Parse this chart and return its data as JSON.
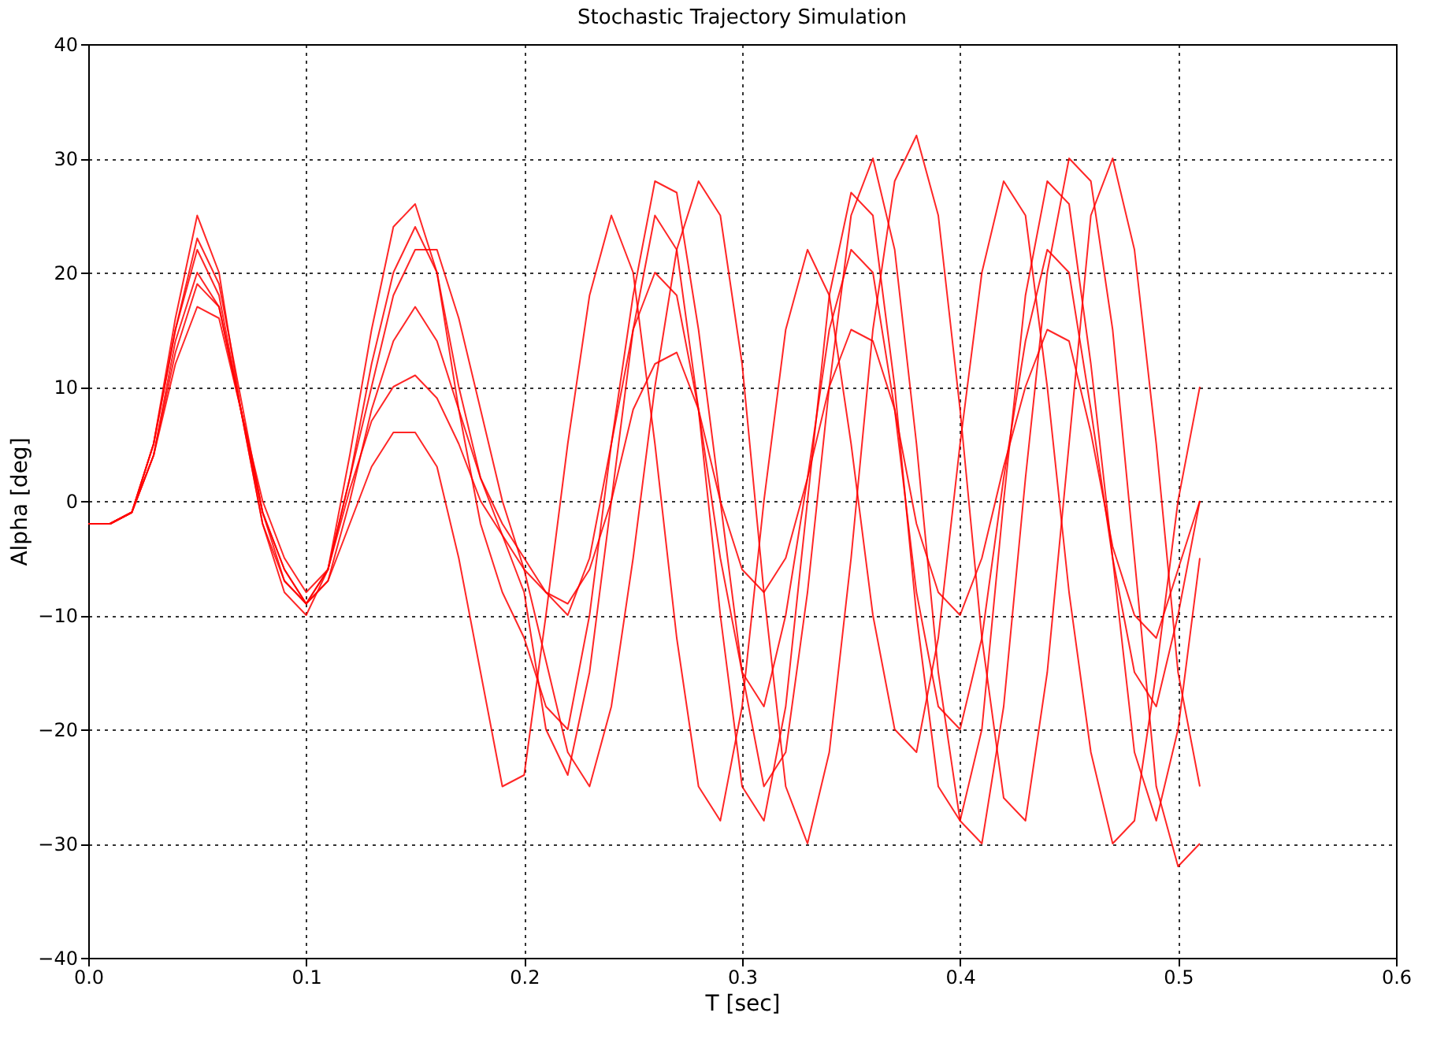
{
  "chart_data": {
    "type": "line",
    "title": "Stochastic Trajectory Simulation",
    "xlabel": "T [sec]",
    "ylabel": "Alpha [deg]",
    "x": [
      0,
      0.01,
      0.02,
      0.03,
      0.04,
      0.05,
      0.06,
      0.07,
      0.08,
      0.09,
      0.1,
      0.11,
      0.12,
      0.13,
      0.14,
      0.15,
      0.16,
      0.17,
      0.18,
      0.19,
      0.2,
      0.21,
      0.22,
      0.23,
      0.24,
      0.25,
      0.26,
      0.27,
      0.28,
      0.29,
      0.3,
      0.31,
      0.32,
      0.33,
      0.34,
      0.35,
      0.36,
      0.37,
      0.38,
      0.39,
      0.4,
      0.41,
      0.42,
      0.43,
      0.44,
      0.45,
      0.46,
      0.47,
      0.48,
      0.49,
      0.5,
      0.51
    ],
    "series": [
      {
        "color": "#ff0000",
        "values": [
          -2,
          -2,
          -1,
          5,
          15,
          22,
          18,
          8,
          -2,
          -7,
          -9,
          -6,
          2,
          12,
          20,
          24,
          20,
          10,
          2,
          -3,
          -8,
          -20,
          -24,
          -15,
          0,
          15,
          25,
          22,
          8,
          -10,
          -25,
          -28,
          -18,
          0,
          18,
          27,
          25,
          10,
          -10,
          -25,
          -28,
          -20,
          0,
          18,
          28,
          26,
          12,
          -5,
          -22,
          -28,
          -20,
          -5
        ]
      },
      {
        "color": "#ff0000",
        "values": [
          -2,
          -2,
          -1,
          4,
          13,
          19,
          17,
          8,
          -1,
          -6,
          -9,
          -7,
          0,
          8,
          14,
          17,
          14,
          8,
          2,
          -2,
          -5,
          -8,
          -10,
          -5,
          5,
          15,
          20,
          18,
          8,
          -5,
          -15,
          -18,
          -10,
          2,
          15,
          22,
          20,
          8,
          -8,
          -18,
          -20,
          -12,
          2,
          14,
          22,
          20,
          8,
          -5,
          -15,
          -18,
          -10,
          0
        ]
      },
      {
        "color": "#ff0000",
        "values": [
          -2,
          -2,
          -1,
          4,
          14,
          20,
          17,
          8,
          -1,
          -6,
          -9,
          -7,
          -2,
          3,
          6,
          6,
          3,
          -5,
          -15,
          -25,
          -24,
          -10,
          5,
          18,
          25,
          20,
          5,
          -12,
          -25,
          -28,
          -18,
          0,
          15,
          22,
          18,
          5,
          -10,
          -20,
          -22,
          -12,
          5,
          20,
          28,
          25,
          10,
          -8,
          -22,
          -30,
          -28,
          -15,
          0,
          10
        ]
      },
      {
        "color": "#ff0000",
        "values": [
          -2,
          -2,
          -1,
          5,
          16,
          25,
          20,
          8,
          -2,
          -8,
          -10,
          -6,
          4,
          15,
          24,
          26,
          20,
          8,
          -2,
          -8,
          -12,
          -18,
          -20,
          -10,
          5,
          18,
          28,
          27,
          15,
          0,
          -15,
          -25,
          -22,
          -8,
          10,
          25,
          30,
          22,
          5,
          -15,
          -28,
          -30,
          -18,
          2,
          20,
          30,
          28,
          15,
          -5,
          -25,
          -32,
          -30
        ]
      },
      {
        "color": "#ff0000",
        "values": [
          -2,
          -2,
          -1,
          4,
          12,
          17,
          16,
          8,
          0,
          -5,
          -8,
          -6,
          1,
          7,
          10,
          11,
          9,
          5,
          0,
          -3,
          -6,
          -8,
          -9,
          -6,
          0,
          8,
          12,
          13,
          8,
          0,
          -6,
          -8,
          -5,
          2,
          10,
          15,
          14,
          8,
          -2,
          -8,
          -10,
          -5,
          3,
          10,
          15,
          14,
          6,
          -4,
          -10,
          -12,
          -6,
          0
        ]
      },
      {
        "color": "#ff0000",
        "values": [
          -2,
          -2,
          -1,
          5,
          15,
          23,
          19,
          9,
          -1,
          -7,
          -9,
          -6,
          2,
          10,
          18,
          22,
          22,
          16,
          8,
          0,
          -6,
          -14,
          -22,
          -25,
          -18,
          -5,
          10,
          22,
          28,
          25,
          12,
          -8,
          -25,
          -30,
          -22,
          -5,
          15,
          28,
          32,
          25,
          8,
          -12,
          -26,
          -28,
          -15,
          5,
          25,
          30,
          22,
          5,
          -15,
          -25
        ]
      }
    ],
    "xlim": [
      0,
      0.6
    ],
    "xticks": [
      {
        "value": 0,
        "label": "0.0"
      },
      0.1,
      0.2,
      0.3,
      0.4,
      0.5,
      0.6
    ],
    "ylim": [
      -40,
      40
    ],
    "yticks": [
      -40,
      -30,
      -20,
      -10,
      0,
      10,
      20,
      30,
      40
    ],
    "grid": true,
    "legend": false,
    "line_style": "solid"
  }
}
